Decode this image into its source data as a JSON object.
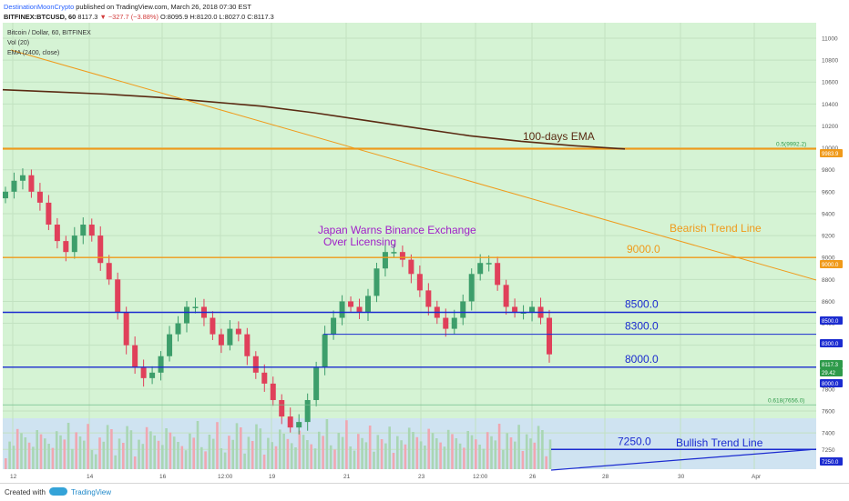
{
  "header": {
    "author": "DestinationMoonCrypto",
    "published": "published on TradingView.com, March 26, 2018 07:30 EST",
    "symbol": "BITFINEX:BTCUSD, 60",
    "last": "8117.3",
    "change": "−327.7 (−3.88%)",
    "ohlc": "O:8095.9 H:8120.0 L:8027.0 C:8117.3"
  },
  "legend": {
    "title": "Bitcoin / Dollar, 60, BITFINEX",
    "vol": "Vol (20)",
    "ema": "EMA (2400, close)"
  },
  "footer": {
    "created": "Created with",
    "brand": "TradingView"
  },
  "colors": {
    "up": "#3d9e6b",
    "down": "#e0405a",
    "ema": "#5a2a12",
    "orange": "#f09a1a",
    "blue": "#1b2bd0",
    "green": "#2e9a4a"
  },
  "chart_data": {
    "type": "candlestick",
    "ylim": [
      7150,
      11150
    ],
    "y_ticks": [
      7250,
      7400,
      7600,
      7800,
      8000,
      8200,
      8400,
      8600,
      8800,
      9000,
      9200,
      9400,
      9600,
      9800,
      10000,
      10200,
      10400,
      10600,
      10800,
      11000
    ],
    "x_ticks": [
      "12",
      "14",
      "16",
      "12:00",
      "19",
      "21",
      "23",
      "12:00",
      "26",
      "28",
      "30",
      "Apr"
    ],
    "price_badges": [
      "9983.9",
      "9000.0",
      "8500.0",
      "8300.0",
      "8117.3",
      "29.42",
      "8000.0",
      "7250.0"
    ],
    "fib_levels": [
      {
        "label": "0.5(9992.2)",
        "value": 9992.2
      },
      {
        "label": "0.618(7656.0)",
        "value": 7656.0
      }
    ],
    "levels": [
      {
        "label": "9000.0",
        "value": 9000
      },
      {
        "label": "8500.0",
        "value": 8500
      },
      {
        "label": "8300.0",
        "value": 8300
      },
      {
        "label": "8000.0",
        "value": 8000
      },
      {
        "label": "7250.0",
        "value": 7250
      }
    ],
    "annotations": [
      "100-days EMA",
      "Bearish Trend Line",
      "Bullish Trend Line",
      "Japan Warns Binance Exchange",
      "Over Licensing"
    ],
    "ema_series": [
      10530,
      10510,
      10490,
      10460,
      10420,
      10380,
      10320,
      10250,
      10180,
      10110,
      10060,
      10020,
      9990
    ],
    "close_series": [
      9600,
      9700,
      9750,
      9600,
      9500,
      9300,
      9150,
      9050,
      9200,
      9300,
      9200,
      8950,
      8800,
      8500,
      8200,
      8000,
      7900,
      7950,
      8100,
      8300,
      8400,
      8550,
      8550,
      8450,
      8300,
      8200,
      8350,
      8300,
      8100,
      7950,
      7850,
      7700,
      7550,
      7450,
      7500,
      7700,
      8000,
      8300,
      8450,
      8600,
      8550,
      8500,
      8650,
      8900,
      9050,
      9050,
      8980,
      8850,
      8700,
      8550,
      8450,
      8350,
      8450,
      8600,
      8850,
      8950,
      8950,
      8750,
      8550,
      8500,
      8500,
      8550,
      8450,
      8117
    ]
  }
}
